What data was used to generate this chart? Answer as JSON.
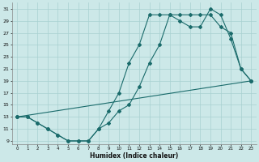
{
  "xlabel": "Humidex (Indice chaleur)",
  "bg_color": "#cce8e8",
  "grid_color": "#a8d0d0",
  "line_color": "#1a6b6b",
  "xlim": [
    -0.5,
    23.5
  ],
  "ylim": [
    8.5,
    32
  ],
  "xticks": [
    0,
    1,
    2,
    3,
    4,
    5,
    6,
    7,
    8,
    9,
    10,
    11,
    12,
    13,
    14,
    15,
    16,
    17,
    18,
    19,
    20,
    21,
    22,
    23
  ],
  "yticks": [
    9,
    11,
    13,
    15,
    17,
    19,
    21,
    23,
    25,
    27,
    29,
    31
  ],
  "line1_x": [
    0,
    1,
    2,
    3,
    4,
    5,
    6,
    7,
    8,
    9,
    10,
    11,
    12,
    13,
    14,
    15,
    16,
    17,
    18,
    19,
    20,
    21,
    22,
    23
  ],
  "line1_y": [
    13,
    13,
    12,
    11,
    10,
    9,
    9,
    9,
    11,
    12,
    14,
    15,
    18,
    22,
    25,
    30,
    30,
    30,
    30,
    30,
    28,
    27,
    21,
    19
  ],
  "line2_x": [
    0,
    1,
    2,
    3,
    4,
    5,
    6,
    7,
    8,
    9,
    10,
    11,
    12,
    13,
    14,
    15,
    16,
    17,
    18,
    19,
    20,
    21,
    22,
    23
  ],
  "line2_y": [
    13,
    13,
    12,
    11,
    10,
    9,
    9,
    9,
    11,
    14,
    17,
    22,
    25,
    30,
    30,
    30,
    29,
    28,
    28,
    31,
    30,
    26,
    21,
    19
  ],
  "line3_x": [
    0,
    23
  ],
  "line3_y": [
    13,
    19
  ]
}
